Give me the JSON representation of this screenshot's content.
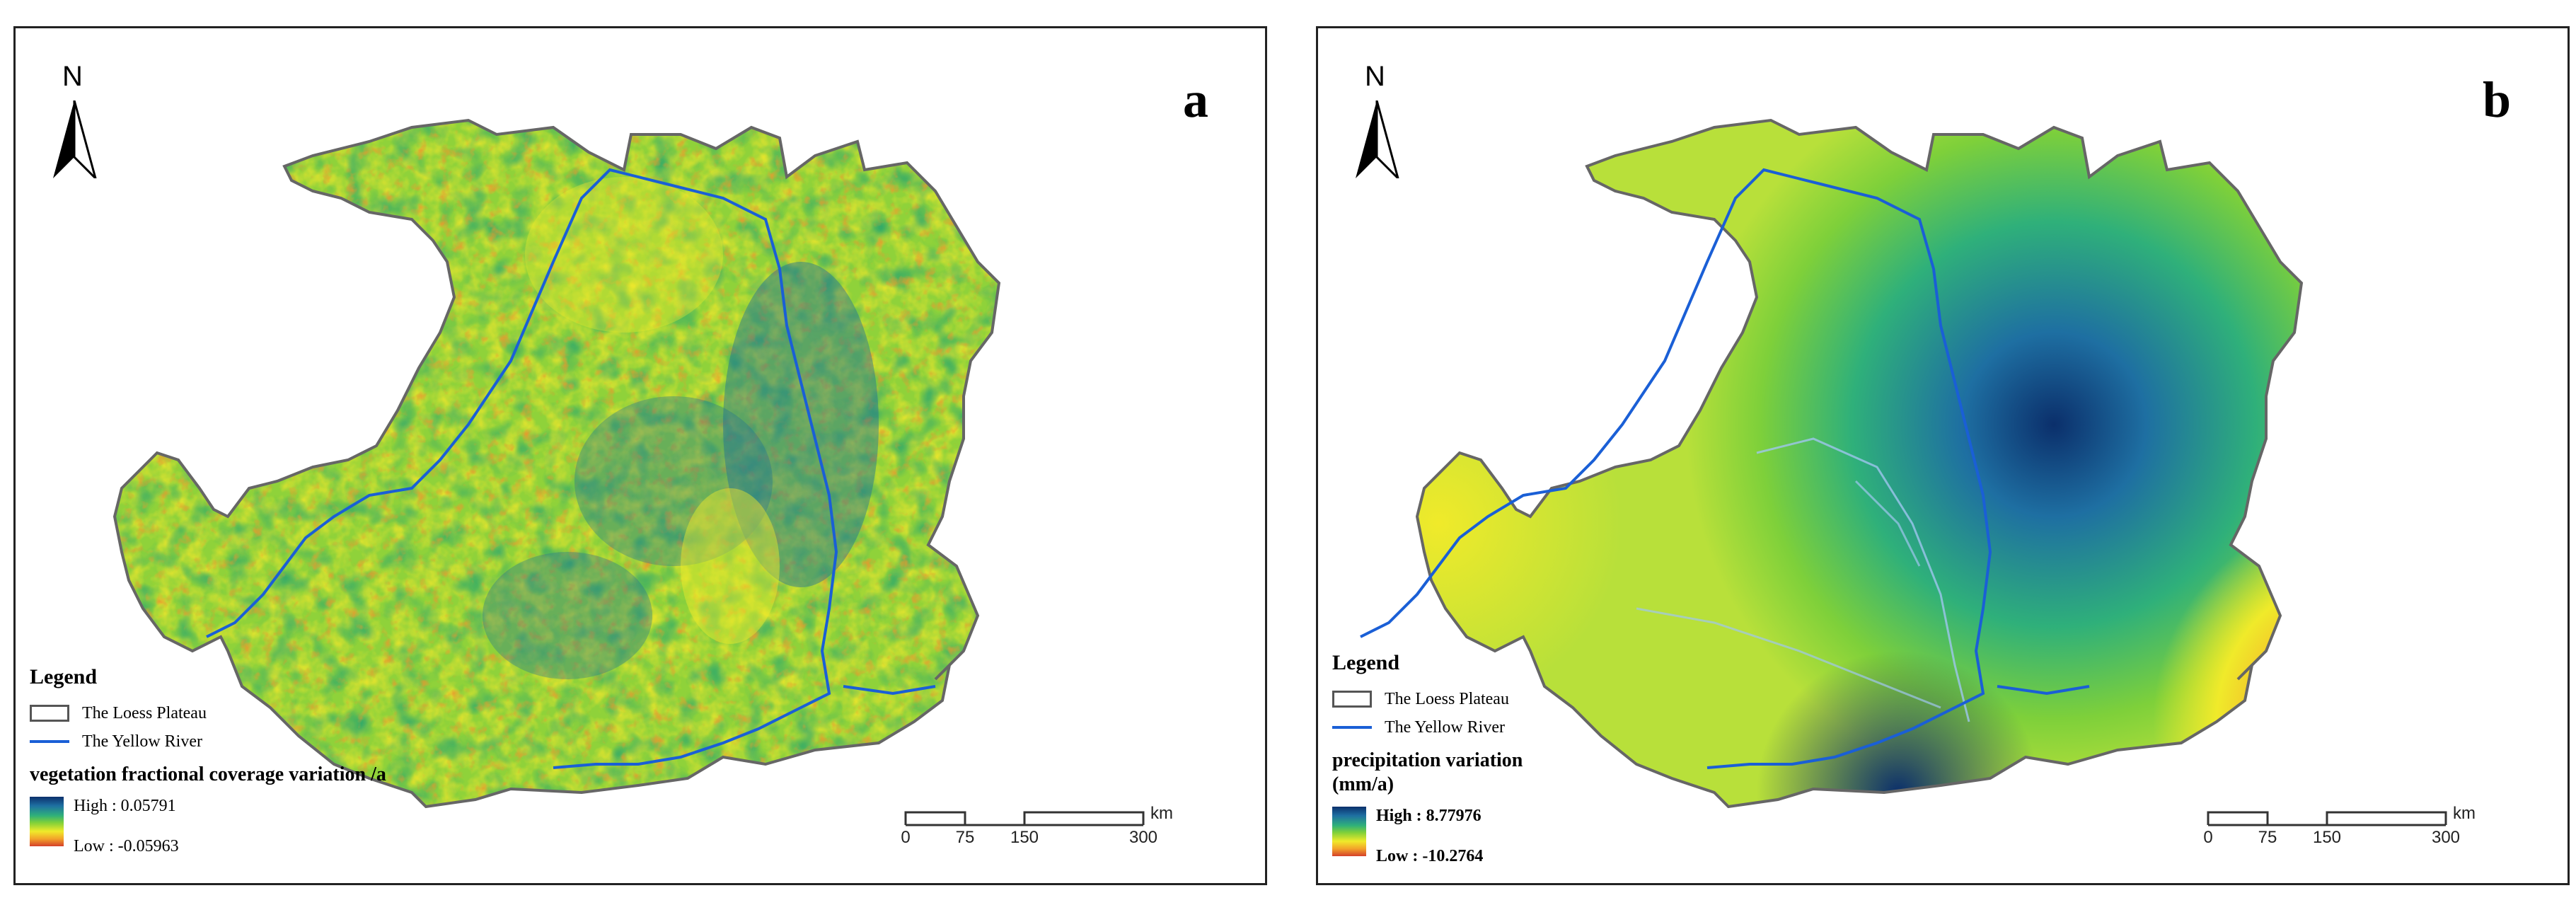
{
  "panels": [
    {
      "letter": "a",
      "north": "N",
      "legend_title": "Legend",
      "plateau_label": "The Loess Plateau",
      "river_label": "The Yellow River",
      "variable_title": "vegetation fractional coverage variation /a",
      "high_label": "High : 0.05791",
      "low_label": "Low : -0.05963",
      "scale": {
        "ticks": [
          "0",
          "75",
          "150",
          "300"
        ],
        "unit": "km"
      }
    },
    {
      "letter": "b",
      "north": "N",
      "legend_title": "Legend",
      "plateau_label": "The Loess Plateau",
      "river_label": "The Yellow River",
      "variable_title": "precipitation variation (mm/a)",
      "high_label": "High : 8.77976",
      "low_label": "Low : -10.2764",
      "scale": {
        "ticks": [
          "0",
          "75",
          "150",
          "300"
        ],
        "unit": "km"
      }
    }
  ],
  "colors": {
    "plateau_outline": "#666666",
    "yellow_river": "#1a5fd6",
    "ramp_high": "#0b2f6b",
    "ramp_mid": "#7ed03a",
    "ramp_yellow": "#f0ea2a",
    "ramp_low": "#d4402a"
  },
  "icons": [
    "north-arrow-icon"
  ]
}
